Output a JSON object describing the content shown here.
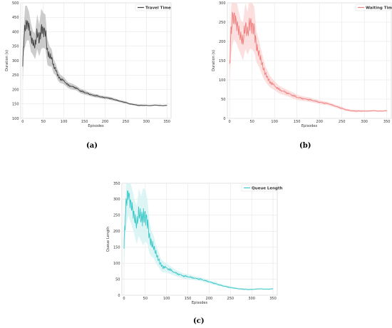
{
  "captions": [
    "(a)",
    "(b)",
    "(c)"
  ],
  "chart_data": [
    {
      "type": "line",
      "xlabel": "Episodes",
      "ylabel": "Duration (s)",
      "xlim": [
        -5,
        360
      ],
      "ylim": [
        100,
        500
      ],
      "xticks": [
        0,
        50,
        100,
        150,
        200,
        250,
        300,
        350
      ],
      "yticks": [
        100,
        150,
        200,
        250,
        300,
        350,
        400,
        450,
        500
      ],
      "grid": true,
      "legend": "top-right",
      "series": [
        {
          "name": "Travel Time",
          "color": "#444444",
          "band_color": "#bbbbbb",
          "x": [
            0,
            3,
            6,
            10,
            15,
            20,
            25,
            30,
            35,
            40,
            45,
            50,
            55,
            60,
            65,
            70,
            75,
            80,
            85,
            90,
            100,
            110,
            120,
            130,
            140,
            150,
            160,
            170,
            180,
            190,
            200,
            210,
            220,
            230,
            240,
            250,
            260,
            270,
            280,
            290,
            300,
            310,
            320,
            330,
            340,
            350
          ],
          "values": [
            280,
            380,
            420,
            430,
            420,
            380,
            360,
            350,
            400,
            370,
            410,
            405,
            400,
            330,
            315,
            310,
            280,
            270,
            250,
            238,
            230,
            215,
            210,
            205,
            195,
            190,
            185,
            180,
            178,
            174,
            172,
            170,
            166,
            162,
            158,
            155,
            150,
            148,
            145,
            145,
            145,
            144,
            146,
            145,
            144,
            145
          ],
          "band": [
            60,
            50,
            70,
            60,
            50,
            50,
            40,
            45,
            60,
            55,
            70,
            60,
            60,
            45,
            35,
            30,
            25,
            20,
            18,
            15,
            12,
            10,
            10,
            8,
            8,
            8,
            6,
            6,
            6,
            5,
            5,
            5,
            5,
            4,
            4,
            4,
            3,
            3,
            3,
            3,
            2,
            2,
            2,
            2,
            2,
            2
          ]
        }
      ]
    },
    {
      "type": "line",
      "xlabel": "Episodes",
      "ylabel": "Duration (s)",
      "xlim": [
        -5,
        360
      ],
      "ylim": [
        0,
        300
      ],
      "xticks": [
        0,
        50,
        100,
        150,
        200,
        250,
        300,
        350
      ],
      "yticks": [
        0,
        50,
        100,
        150,
        200,
        250,
        300
      ],
      "grid": true,
      "legend": "top-right",
      "series": [
        {
          "name": "Waiting Time",
          "color": "#f08080",
          "band_color": "#fbd6d6",
          "x": [
            0,
            3,
            6,
            10,
            15,
            20,
            25,
            30,
            35,
            40,
            45,
            50,
            55,
            60,
            65,
            70,
            75,
            80,
            85,
            90,
            100,
            110,
            120,
            130,
            140,
            150,
            160,
            170,
            180,
            190,
            200,
            210,
            220,
            230,
            240,
            250,
            260,
            270,
            280,
            290,
            300,
            310,
            320,
            330,
            340,
            350
          ],
          "values": [
            140,
            220,
            260,
            265,
            250,
            230,
            210,
            200,
            240,
            220,
            250,
            240,
            230,
            185,
            170,
            150,
            130,
            115,
            105,
            95,
            85,
            75,
            70,
            65,
            60,
            55,
            52,
            50,
            48,
            45,
            42,
            40,
            38,
            34,
            30,
            26,
            22,
            20,
            19,
            19,
            19,
            19,
            20,
            19,
            19,
            20
          ],
          "band": [
            60,
            60,
            70,
            60,
            55,
            50,
            45,
            50,
            60,
            55,
            70,
            60,
            60,
            40,
            35,
            30,
            25,
            20,
            18,
            15,
            12,
            10,
            9,
            8,
            8,
            7,
            6,
            6,
            6,
            5,
            5,
            5,
            4,
            4,
            4,
            4,
            3,
            3,
            3,
            3,
            2,
            2,
            2,
            2,
            2,
            2
          ]
        }
      ]
    },
    {
      "type": "line",
      "xlabel": "Episodes",
      "ylabel": "Queue Length",
      "xlim": [
        -5,
        360
      ],
      "ylim": [
        0,
        350
      ],
      "xticks": [
        0,
        50,
        100,
        150,
        200,
        250,
        300,
        350
      ],
      "yticks": [
        0,
        50,
        100,
        150,
        200,
        250,
        300,
        350
      ],
      "grid": true,
      "legend": "top-right",
      "series": [
        {
          "name": "Queue Length",
          "color": "#3cc8c8",
          "band_color": "#d2f1f1",
          "x": [
            0,
            3,
            6,
            10,
            15,
            20,
            25,
            30,
            35,
            40,
            45,
            50,
            55,
            60,
            65,
            70,
            75,
            80,
            85,
            90,
            100,
            110,
            120,
            130,
            140,
            150,
            160,
            170,
            180,
            190,
            200,
            210,
            220,
            230,
            240,
            250,
            260,
            270,
            280,
            290,
            300,
            310,
            320,
            330,
            340,
            350
          ],
          "values": [
            150,
            240,
            300,
            320,
            290,
            270,
            240,
            220,
            260,
            240,
            245,
            250,
            230,
            180,
            160,
            150,
            130,
            115,
            100,
            90,
            85,
            78,
            70,
            65,
            60,
            58,
            55,
            52,
            50,
            46,
            42,
            38,
            34,
            30,
            27,
            24,
            22,
            20,
            19,
            18,
            18,
            19,
            20,
            19,
            19,
            20
          ],
          "band": [
            70,
            70,
            80,
            70,
            60,
            60,
            55,
            60,
            75,
            70,
            90,
            80,
            70,
            50,
            40,
            35,
            30,
            25,
            20,
            18,
            14,
            12,
            10,
            9,
            8,
            8,
            7,
            6,
            6,
            6,
            5,
            5,
            5,
            4,
            4,
            4,
            3,
            3,
            3,
            3,
            2,
            2,
            2,
            2,
            2,
            2
          ]
        }
      ]
    }
  ]
}
